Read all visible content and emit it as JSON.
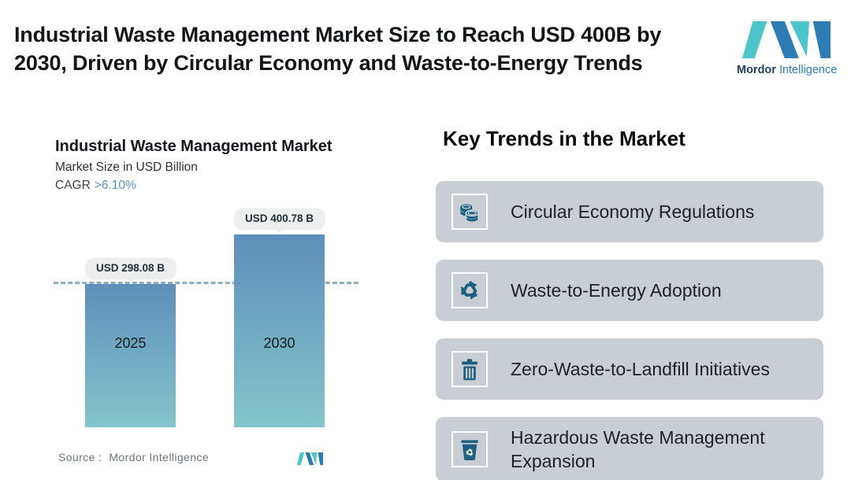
{
  "header": {
    "title_line1": "Industrial Waste Management Market Size to Reach USD 400B by",
    "title_line2": "2030, Driven by Circular Economy and Waste-to-Energy Trends"
  },
  "brand": {
    "word1": "Mordor",
    "word2": "Intelligence"
  },
  "chart": {
    "title": "Industrial Waste Management Market",
    "subtitle": "Market Size in USD Billion",
    "cagr_label": "CAGR",
    "cagr_value": ">6.10%",
    "source_label": "Source :",
    "source_value": "Mordor Intelligence"
  },
  "chart_data": {
    "type": "bar",
    "title": "Industrial Waste Management Market",
    "ylabel": "Market Size in USD Billion",
    "cagr": ">6.10%",
    "categories": [
      "2025",
      "2030"
    ],
    "values": [
      298.08,
      400.78
    ],
    "value_labels": [
      "USD 298.08 B",
      "USD 400.78 B"
    ],
    "ylim": [
      0,
      400.78
    ],
    "reference_line": 298.08,
    "grid": false,
    "legend": "none",
    "bar_gradient_top": "#5d90ba",
    "bar_gradient_bottom": "#84c5cb"
  },
  "trends": {
    "heading": "Key Trends in the Market",
    "items": [
      {
        "label": "Circular Economy Regulations",
        "icon": "coins-icon"
      },
      {
        "label": "Waste-to-Energy Adoption",
        "icon": "recycle-icon"
      },
      {
        "label": "Zero-Waste-to-Landfill Initiatives",
        "icon": "trash-bin-icon"
      },
      {
        "label": "Hazardous Waste Management Expansion",
        "icon": "hazardous-bin-icon"
      }
    ]
  },
  "colors": {
    "brand_teal": "#4cc4c9",
    "brand_blue": "#2f7cb5",
    "icon_blue": "#1f6080",
    "card_background": "#c9ced5",
    "dashed_line": "#8fafc0",
    "cagr_accent": "#5c93bd",
    "pill_background": "#ecefee",
    "source_text": "#6e767c"
  }
}
